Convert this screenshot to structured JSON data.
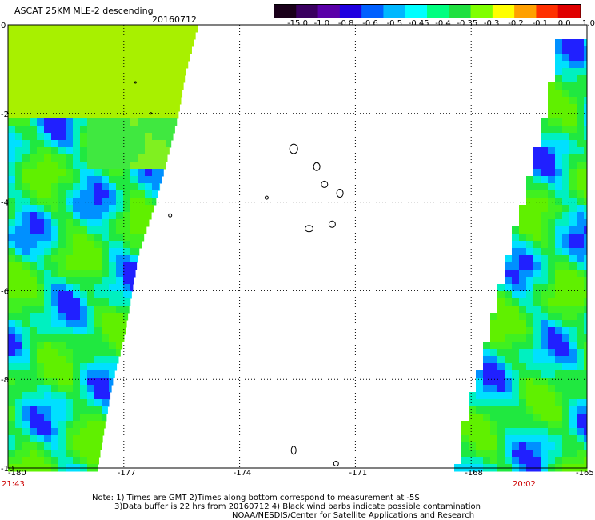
{
  "header": {
    "title": "ASCAT 25KM MLE-2 descending",
    "date": "20160712"
  },
  "colorbar": {
    "labels": [
      "-15.0",
      "-1.0",
      "-0.8",
      "-0.6",
      "-0.5",
      "-0.45",
      "-0.4",
      "-0.35",
      "-0.3",
      "-0.2",
      "-0.1",
      "0.0",
      "1.0"
    ],
    "colors": [
      "#1a001a",
      "#3a0060",
      "#5a00a8",
      "#2000e0",
      "#0060ff",
      "#00b8ff",
      "#00ffff",
      "#00ff80",
      "#20e040",
      "#80ff00",
      "#ffff00",
      "#ffa000",
      "#ff3000",
      "#e00000"
    ]
  },
  "chart_data": {
    "type": "heatmap",
    "xlim": [
      -180,
      -165
    ],
    "ylim": [
      -10,
      0
    ],
    "x_ticks": [
      "-180",
      "-177",
      "-174",
      "-171",
      "-168",
      "-165"
    ],
    "y_ticks": [
      "0",
      "-2",
      "-4",
      "-6",
      "-8",
      "-10"
    ],
    "grid": true,
    "swaths": [
      {
        "side": "left",
        "edge": [
          [
            0,
            -175.1
          ],
          [
            -1.0,
            -175.4
          ],
          [
            -2.0,
            -175.6
          ],
          [
            -3.0,
            -175.9
          ],
          [
            -4.0,
            -176.2
          ],
          [
            -5.0,
            -176.6
          ],
          [
            -6.0,
            -176.8
          ],
          [
            -7.0,
            -177.0
          ],
          [
            -8.0,
            -177.3
          ],
          [
            -9.0,
            -177.5
          ],
          [
            -10.0,
            -177.7
          ]
        ]
      },
      {
        "side": "right",
        "edge": [
          [
            -0.2,
            -165.7
          ],
          [
            -1.0,
            -165.8
          ],
          [
            -2.0,
            -166.0
          ],
          [
            -3.0,
            -166.3
          ],
          [
            -4.0,
            -166.6
          ],
          [
            -5.0,
            -166.9
          ],
          [
            -6.0,
            -167.2
          ],
          [
            -7.0,
            -167.5
          ],
          [
            -8.0,
            -167.8
          ],
          [
            -9.0,
            -168.1
          ],
          [
            -10.0,
            -168.3
          ]
        ]
      }
    ]
  },
  "footer": {
    "time_left": "21:43",
    "time_right": "20:02",
    "note1": "Note: 1) Times are GMT 2)Times along bottom correspond to measurement at -5S",
    "note2": "3)Data buffer is 22 hrs from 20160712 4) Black wind barbs indicate possible contamination",
    "note3": "NOAA/NESDIS/Center for Satellite Applications and Research"
  }
}
